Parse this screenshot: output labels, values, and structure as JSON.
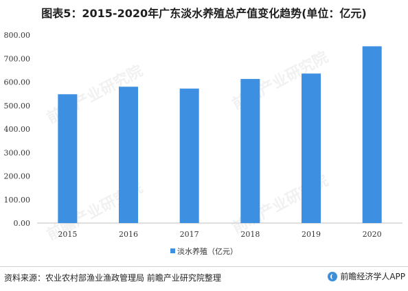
{
  "title": "图表5：2015-2020年广东淡水养殖总产值变化趋势(单位：亿元)",
  "chart_data": {
    "type": "bar",
    "categories": [
      "2015",
      "2016",
      "2017",
      "2018",
      "2019",
      "2020"
    ],
    "series": [
      {
        "name": "淡水养殖（亿元）",
        "values": [
          548,
          580,
          572,
          613,
          636,
          752
        ],
        "color": "#3d8fe2"
      }
    ],
    "ylim": [
      0,
      800
    ],
    "yticks": [
      "0.00",
      "100.00",
      "200.00",
      "300.00",
      "400.00",
      "500.00",
      "600.00",
      "700.00",
      "800.00"
    ],
    "grid": false,
    "legend": "bottom-center"
  },
  "footer": {
    "source": "资料来源：农业农村部渔业渔政管理局 前瞻产业研究院整理",
    "brand": "前瞻经济学人APP"
  },
  "watermark": {
    "text": "前瞻产业研究院"
  }
}
